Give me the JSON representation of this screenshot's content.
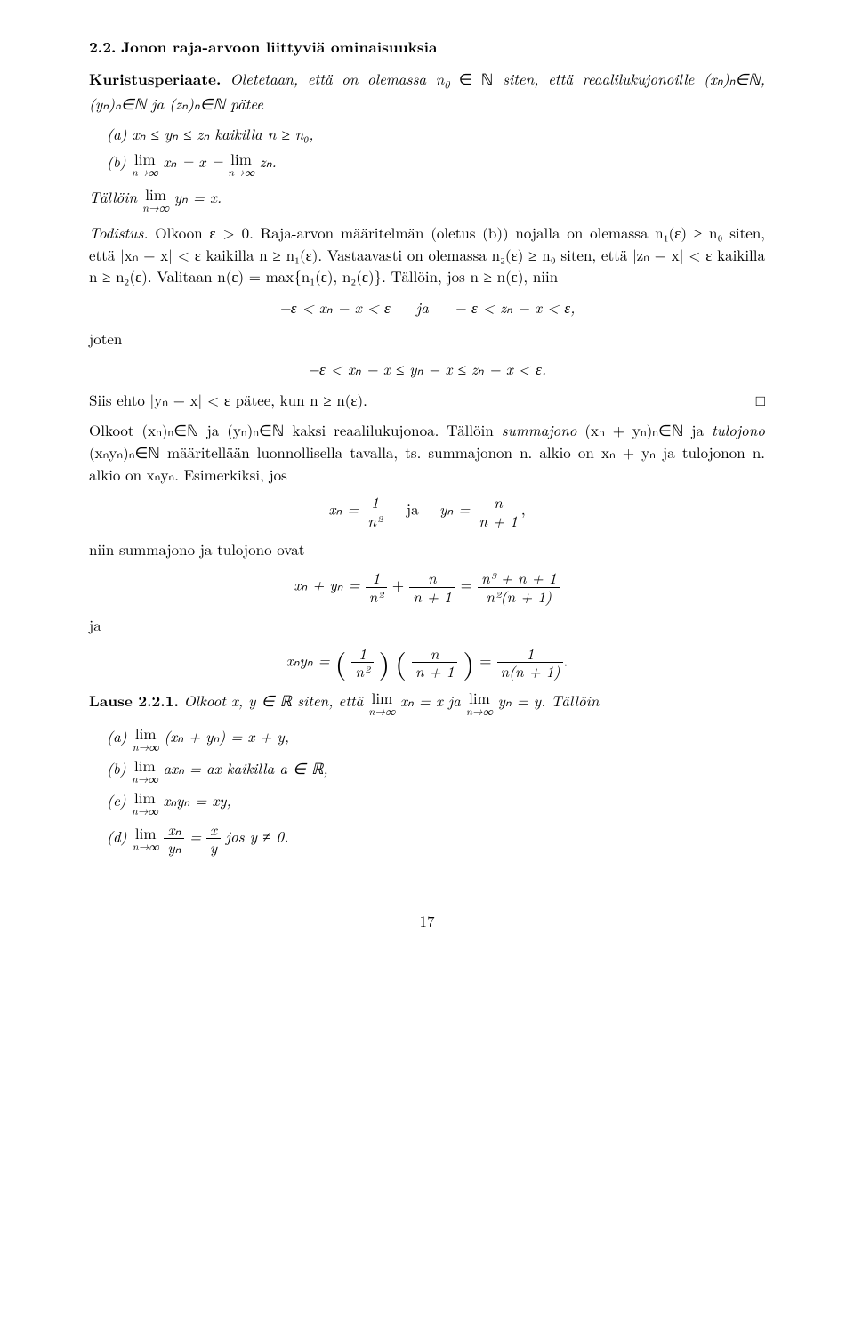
{
  "section": {
    "number": "2.2.",
    "title": "Jonon raja-arvoon liittyviä ominaisuuksia"
  },
  "theorem1": {
    "name": "Kuristusperiaate.",
    "intro_a": "Oletetaan, että on olemassa ",
    "intro_b": " siten, että reaalilukujonoille ",
    "intro_c": " pätee",
    "n0": "n",
    "n0sub": "0",
    "inN": " ∈ ℕ",
    "seq": "(xₙ)ₙ∈ℕ, (yₙ)ₙ∈ℕ ja (zₙ)ₙ∈ℕ",
    "item_a_label": "(a) ",
    "item_a": "xₙ ≤ yₙ ≤ zₙ kaikilla n ≥ n₀,",
    "item_b_label": "(b) ",
    "item_b_left": "xₙ = x =",
    "item_b_right": "zₙ.",
    "conclusion_pre": "Tällöin ",
    "conclusion_post": "yₙ = x."
  },
  "lim_label_top": "lim",
  "lim_label_bot": "n→∞",
  "proof": {
    "label": "Todistus.",
    "s1": "Olkoon ε > 0. Raja-arvon määritelmän (oletus (b)) nojalla on olemassa n₁(ε) ≥ n₀ siten, että |xₙ − x| < ε kaikilla n ≥ n₁(ε). Vastaavasti on olemassa n₂(ε) ≥ n₀ siten, että |zₙ − x| < ε kaikilla n ≥ n₂(ε). Valitaan n(ε) = max{n₁(ε), n₂(ε)}. Tällöin, jos n ≥ n(ε), niin",
    "disp1": "−ε < xₙ − x < ε   ja   − ε < zₙ − x < ε,",
    "joten": "joten",
    "disp2": "−ε < xₙ − x ≤ yₙ − x ≤ zₙ − x < ε.",
    "s2": "Siis ehto |yₙ − x| < ε pätee, kun n ≥ n(ε).",
    "qed": "□"
  },
  "para2": {
    "p1": "Olkoot (xₙ)ₙ∈ℕ ja (yₙ)ₙ∈ℕ kaksi reaalilukujonoa. Tällöin ",
    "summajono": "summajono",
    "p2": " (xₙ + yₙ)ₙ∈ℕ ja ",
    "tulojono": "tu­lojono",
    "p3": " (xₙyₙ)ₙ∈ℕ määritellään luonnollisella tavalla, ts. summajonon n. alkio on xₙ + yₙ ja tulojonon n. alkio on xₙyₙ. Esimerkiksi, jos"
  },
  "formula_xnyn": {
    "xn_eq": "xₙ =",
    "frac1_num": "1",
    "frac1_den": "n²",
    "ja": "ja",
    "yn_eq": "yₙ =",
    "frac2_num": "n",
    "frac2_den": "n + 1",
    "comma": ","
  },
  "para3": "niin summajono ja tulojono ovat",
  "formula_sum": {
    "lhs": "xₙ + yₙ =",
    "f1_num": "1",
    "f1_den": "n²",
    "plus": "+",
    "f2_num": "n",
    "f2_den": "n + 1",
    "eq": "=",
    "f3_num": "n³ + n + 1",
    "f3_den": "n²(n + 1)"
  },
  "ja_label": "ja",
  "formula_prod": {
    "lhs": "xₙyₙ =",
    "f1_num": "1",
    "f1_den": "n²",
    "f2_num": "n",
    "f2_den": "n + 1",
    "eq": "=",
    "f3_num": "1",
    "f3_den": "n(n + 1)",
    "dot": "."
  },
  "lause": {
    "label": "Lause 2.2.1.",
    "text_a": "Olkoot x, y ∈ ℝ siten, että ",
    "text_b": "xₙ = x ja ",
    "text_c": "yₙ = y. Tällöin",
    "a_label": "(a) ",
    "a_rhs": "(xₙ + yₙ) = x + y,",
    "b_label": "(b) ",
    "b_rhs": "axₙ = ax kaikilla a ∈ ℝ,",
    "c_label": "(c) ",
    "c_rhs": "xₙyₙ = xy,",
    "d_label": "(d) ",
    "d_frac1_num": "xₙ",
    "d_frac1_den": "yₙ",
    "d_eq": "=",
    "d_frac2_num": "x",
    "d_frac2_den": "y",
    "d_tail": " jos y ≠ 0."
  },
  "page_number": "17"
}
